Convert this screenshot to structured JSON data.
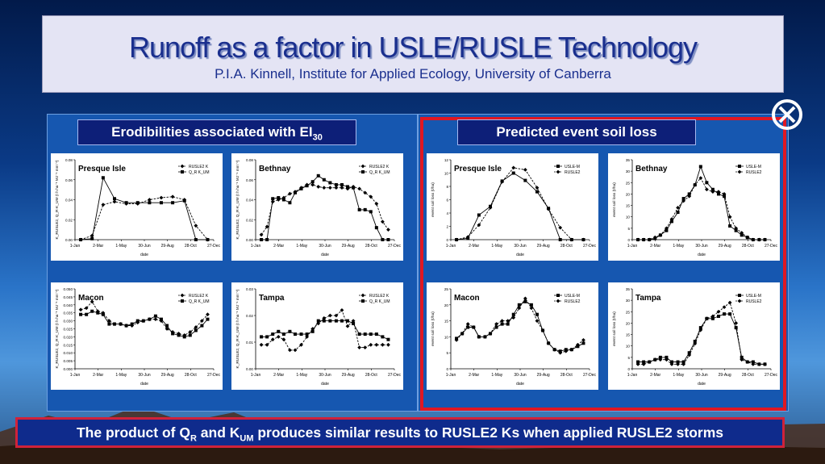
{
  "slide": {
    "title": "Runoff as a factor in USLE/RUSLE Technology",
    "subtitle": "P.I.A. Kinnell, Institute for Applied Ecology, University of Canberra",
    "left_header_main": "Erodibilities associated with EI",
    "left_header_sub": "30",
    "right_header": "Predicted event soil loss",
    "footer_part1": "The product of Q",
    "footer_sub1": "R",
    "footer_part2": " and K",
    "footer_sub2": "UM",
    "footer_part3": " produces similar results to RUSLE2 Ks when applied RUSLE2 storms",
    "close_icon": "close-circle-icon",
    "colors": {
      "highlight_frame": "#e01822",
      "header_bg": "#0d1f78",
      "panel_bg": "#1657b0"
    }
  },
  "chart_data": [
    {
      "id": "k-presque",
      "type": "line",
      "title": "Presque Isle",
      "xlabel": "date",
      "ylabel": "K_RUSLE2, Q_R·K_UM (t h ha⁻¹ MJ⁻¹ mm⁻¹)",
      "x_ticks": [
        "1-Jan",
        "2-Mar",
        "1-May",
        "30-Jun",
        "29-Aug",
        "28-Oct",
        "27-Dec"
      ],
      "y_ticks": [
        "0.00",
        "0.02",
        "0.04",
        "0.06",
        "0.08"
      ],
      "ylim": [
        0,
        0.08
      ],
      "legend": [
        "RUSLE2 K",
        "Q_R K_UM"
      ],
      "series": [
        {
          "name": "RUSLE2 K",
          "dashed": true,
          "marker": "diamond",
          "x": [
            15,
            45,
            74,
            104,
            135,
            165,
            196,
            227,
            257,
            288,
            318,
            349
          ],
          "y": [
            0,
            0.004,
            0.035,
            0.038,
            0.036,
            0.036,
            0.04,
            0.042,
            0.043,
            0.04,
            0.014,
            0
          ]
        },
        {
          "name": "Q_R K_UM",
          "dashed": false,
          "marker": "square",
          "x": [
            15,
            45,
            74,
            104,
            135,
            165,
            196,
            227,
            257,
            288,
            318,
            349
          ],
          "y": [
            0,
            0.001,
            0.062,
            0.041,
            0.037,
            0.037,
            0.037,
            0.037,
            0.037,
            0.039,
            0,
            0
          ]
        }
      ]
    },
    {
      "id": "k-bethnay",
      "type": "line",
      "title": "Bethnay",
      "xlabel": "date",
      "ylabel": "K_RUSLE2, Q_R·K_UM (t h ha⁻¹ MJ⁻¹ mm⁻¹)",
      "x_ticks": [
        "1-Jan",
        "2-Mar",
        "1-May",
        "30-Jun",
        "29-Aug",
        "28-Oct",
        "27-Dec"
      ],
      "y_ticks": [
        "0.00",
        "0.02",
        "0.04",
        "0.06",
        "0.08"
      ],
      "ylim": [
        0,
        0.08
      ],
      "legend": [
        "RUSLE2 K",
        "Q_R K_UM"
      ],
      "series": [
        {
          "name": "RUSLE2 K",
          "dashed": true,
          "marker": "diamond",
          "x": [
            15,
            30,
            45,
            60,
            74,
            90,
            104,
            120,
            135,
            150,
            165,
            180,
            196,
            212,
            227,
            242,
            257,
            273,
            288,
            303,
            318,
            334,
            349
          ],
          "y": [
            0.005,
            0.013,
            0.038,
            0.04,
            0.042,
            0.046,
            0.048,
            0.052,
            0.055,
            0.055,
            0.053,
            0.052,
            0.052,
            0.052,
            0.052,
            0.051,
            0.053,
            0.051,
            0.047,
            0.043,
            0.036,
            0.018,
            0.01
          ]
        },
        {
          "name": "Q_R K_UM",
          "dashed": false,
          "marker": "square",
          "x": [
            15,
            30,
            45,
            60,
            74,
            90,
            104,
            120,
            135,
            150,
            165,
            180,
            196,
            212,
            227,
            242,
            257,
            273,
            288,
            303,
            318,
            334,
            349
          ],
          "y": [
            0,
            0,
            0.041,
            0.042,
            0.04,
            0.037,
            0.047,
            0.051,
            0.054,
            0.058,
            0.064,
            0.06,
            0.057,
            0.055,
            0.055,
            0.053,
            0.052,
            0.03,
            0.03,
            0.028,
            0.012,
            0,
            0
          ]
        }
      ]
    },
    {
      "id": "k-macon",
      "type": "line",
      "title": "Macon",
      "xlabel": "date",
      "ylabel": "K_RUSLE2, Q_R·K_UM (t h ha⁻¹ MJ⁻¹ mm⁻¹)",
      "x_ticks": [
        "1-Jan",
        "2-Mar",
        "1-May",
        "30-Jun",
        "29-Aug",
        "28-Oct",
        "27-Dec"
      ],
      "y_ticks": [
        "0.000",
        "0.005",
        "0.010",
        "0.015",
        "0.020",
        "0.025",
        "0.030",
        "0.035",
        "0.040",
        "0.045",
        "0.050"
      ],
      "ylim": [
        0,
        0.05
      ],
      "legend": [
        "RUSLE2 K",
        "Q_R K_UM"
      ],
      "series": [
        {
          "name": "RUSLE2 K",
          "dashed": true,
          "marker": "diamond",
          "x": [
            15,
            30,
            45,
            60,
            74,
            90,
            104,
            120,
            135,
            150,
            165,
            180,
            196,
            212,
            227,
            242,
            257,
            273,
            288,
            303,
            318,
            334,
            349
          ],
          "y": [
            0.037,
            0.038,
            0.042,
            0.036,
            0.035,
            0.03,
            0.028,
            0.028,
            0.027,
            0.027,
            0.029,
            0.03,
            0.031,
            0.031,
            0.03,
            0.025,
            0.023,
            0.022,
            0.021,
            0.023,
            0.026,
            0.03,
            0.034
          ]
        },
        {
          "name": "Q_R K_UM",
          "dashed": false,
          "marker": "square",
          "x": [
            15,
            30,
            45,
            60,
            74,
            90,
            104,
            120,
            135,
            150,
            165,
            180,
            196,
            212,
            227,
            242,
            257,
            273,
            288,
            303,
            318,
            334,
            349
          ],
          "y": [
            0.034,
            0.034,
            0.036,
            0.035,
            0.034,
            0.028,
            0.028,
            0.028,
            0.027,
            0.028,
            0.03,
            0.03,
            0.031,
            0.033,
            0.031,
            0.027,
            0.022,
            0.021,
            0.02,
            0.021,
            0.024,
            0.027,
            0.031
          ]
        }
      ]
    },
    {
      "id": "k-tampa",
      "type": "line",
      "title": "Tampa",
      "xlabel": "date",
      "ylabel": "K_RUSLE2, Q_R·K_UM (t h ha⁻¹ MJ⁻¹ mm⁻¹)",
      "x_ticks": [
        "1-Jan",
        "2-Mar",
        "1-May",
        "30-Jun",
        "29-Aug",
        "28-Oct",
        "27-Dec"
      ],
      "y_ticks": [
        "0.00",
        "0.01",
        "0.02",
        "0.03"
      ],
      "ylim": [
        0,
        0.03
      ],
      "legend": [
        "RUSLE2 K",
        "Q_R K_UM"
      ],
      "series": [
        {
          "name": "RUSLE2 K",
          "dashed": true,
          "marker": "diamond",
          "x": [
            15,
            30,
            45,
            60,
            74,
            90,
            104,
            120,
            135,
            150,
            165,
            180,
            196,
            212,
            227,
            242,
            257,
            273,
            288,
            303,
            318,
            334,
            349
          ],
          "y": [
            0.009,
            0.009,
            0.011,
            0.012,
            0.011,
            0.007,
            0.007,
            0.009,
            0.012,
            0.015,
            0.017,
            0.019,
            0.02,
            0.02,
            0.022,
            0.016,
            0.018,
            0.008,
            0.008,
            0.009,
            0.009,
            0.009,
            0.009
          ]
        },
        {
          "name": "Q_R K_UM",
          "dashed": false,
          "marker": "square",
          "x": [
            15,
            30,
            45,
            60,
            74,
            90,
            104,
            120,
            135,
            150,
            165,
            180,
            196,
            212,
            227,
            242,
            257,
            273,
            288,
            303,
            318,
            334,
            349
          ],
          "y": [
            0.012,
            0.012,
            0.013,
            0.014,
            0.013,
            0.014,
            0.013,
            0.013,
            0.013,
            0.014,
            0.018,
            0.018,
            0.018,
            0.018,
            0.018,
            0.018,
            0.017,
            0.013,
            0.013,
            0.013,
            0.013,
            0.012,
            0.011
          ]
        }
      ]
    },
    {
      "id": "sl-presque",
      "type": "line",
      "title": "Presque Isle",
      "xlabel": "date",
      "ylabel": "event soil loss (t/ha)",
      "x_ticks": [
        "1-Jan",
        "2-Mar",
        "1-May",
        "30-Jun",
        "29-Aug",
        "28-Oct",
        "27-Dec"
      ],
      "y_ticks": [
        "0",
        "2",
        "4",
        "6",
        "8",
        "10",
        "12"
      ],
      "ylim": [
        0,
        12
      ],
      "legend": [
        "USLE-M",
        "RUSLE2"
      ],
      "series": [
        {
          "name": "USLE-M",
          "dashed": false,
          "marker": "square",
          "x": [
            15,
            45,
            74,
            104,
            135,
            165,
            196,
            227,
            257,
            288,
            318,
            349
          ],
          "y": [
            0,
            0.2,
            3.7,
            5.0,
            8.8,
            10.0,
            8.9,
            7.2,
            4.7,
            0,
            0,
            0
          ]
        },
        {
          "name": "RUSLE2",
          "dashed": true,
          "marker": "diamond",
          "x": [
            15,
            45,
            74,
            104,
            135,
            165,
            196,
            227,
            257,
            288,
            318,
            349
          ],
          "y": [
            0,
            0.4,
            2.2,
            4.8,
            8.7,
            10.8,
            10.5,
            7.8,
            4.6,
            1.8,
            0,
            0
          ]
        }
      ]
    },
    {
      "id": "sl-bethnay",
      "type": "line",
      "title": "Bethnay",
      "xlabel": "date",
      "ylabel": "event soil loss (t/ha)",
      "x_ticks": [
        "1-Jan",
        "2-Mar",
        "1-May",
        "30-Jun",
        "29-Aug",
        "28-Oct",
        "27-Dec"
      ],
      "y_ticks": [
        "0",
        "5",
        "10",
        "15",
        "20",
        "25",
        "30",
        "35"
      ],
      "ylim": [
        0,
        35
      ],
      "legend": [
        "USLE-M",
        "RUSLE2"
      ],
      "series": [
        {
          "name": "USLE-M",
          "dashed": false,
          "marker": "square",
          "x": [
            15,
            30,
            45,
            60,
            74,
            90,
            104,
            120,
            135,
            150,
            165,
            180,
            196,
            212,
            227,
            242,
            257,
            273,
            288,
            303,
            318,
            334,
            349
          ],
          "y": [
            0,
            0,
            0,
            0.5,
            2,
            4,
            8,
            12,
            18,
            20,
            24,
            32,
            25,
            22,
            20,
            19,
            6,
            4,
            2,
            1,
            0,
            0,
            0
          ]
        },
        {
          "name": "RUSLE2",
          "dashed": true,
          "marker": "diamond",
          "x": [
            15,
            30,
            45,
            60,
            74,
            90,
            104,
            120,
            135,
            150,
            165,
            180,
            196,
            212,
            227,
            242,
            257,
            273,
            288,
            303,
            318,
            334,
            349
          ],
          "y": [
            0,
            0,
            0,
            1,
            2,
            5,
            9,
            14,
            17,
            19,
            24,
            27,
            22,
            21,
            21,
            20,
            10,
            5,
            3,
            1,
            0,
            0,
            0
          ]
        }
      ]
    },
    {
      "id": "sl-macon",
      "type": "line",
      "title": "Macon",
      "xlabel": "date",
      "ylabel": "event soil loss (t/ha)",
      "x_ticks": [
        "1-Jan",
        "2-Mar",
        "1-May",
        "30-Jun",
        "29-Aug",
        "28-Oct",
        "27-Dec"
      ],
      "y_ticks": [
        "0",
        "5",
        "10",
        "15",
        "20",
        "25"
      ],
      "ylim": [
        0,
        25
      ],
      "legend": [
        "USLE-M",
        "RUSLE2"
      ],
      "series": [
        {
          "name": "USLE-M",
          "dashed": false,
          "marker": "square",
          "x": [
            15,
            30,
            45,
            60,
            74,
            90,
            104,
            120,
            135,
            150,
            165,
            180,
            196,
            212,
            227,
            242,
            257,
            273,
            288,
            303,
            318,
            334,
            349
          ],
          "y": [
            9.5,
            11,
            13,
            13,
            10,
            10,
            11,
            13,
            14,
            14,
            17,
            20,
            21,
            20,
            17,
            12,
            8,
            6,
            5.5,
            6,
            6,
            7,
            8
          ]
        },
        {
          "name": "RUSLE2",
          "dashed": true,
          "marker": "diamond",
          "x": [
            15,
            30,
            45,
            60,
            74,
            90,
            104,
            120,
            135,
            150,
            165,
            180,
            196,
            212,
            227,
            242,
            257,
            273,
            288,
            303,
            318,
            334,
            349
          ],
          "y": [
            9,
            11,
            14,
            13,
            10,
            10,
            11,
            14,
            15,
            15,
            16,
            19,
            22,
            19,
            15,
            12,
            8,
            6,
            5,
            5.5,
            6,
            7.5,
            9
          ]
        }
      ]
    },
    {
      "id": "sl-tampa",
      "type": "line",
      "title": "Tampa",
      "xlabel": "date",
      "ylabel": "event soil loss (t/ha)",
      "x_ticks": [
        "1-Jan",
        "2-Mar",
        "1-May",
        "30-Jun",
        "29-Aug",
        "28-Oct",
        "27-Dec"
      ],
      "y_ticks": [
        "0",
        "5",
        "10",
        "15",
        "20",
        "25",
        "30",
        "35"
      ],
      "ylim": [
        0,
        35
      ],
      "legend": [
        "USLE-M",
        "RUSLE2"
      ],
      "series": [
        {
          "name": "USLE-M",
          "dashed": false,
          "marker": "square",
          "x": [
            15,
            30,
            45,
            60,
            74,
            90,
            104,
            120,
            135,
            150,
            165,
            180,
            196,
            212,
            227,
            242,
            257,
            273,
            288,
            303,
            318,
            334,
            349
          ],
          "y": [
            3,
            3,
            3,
            4,
            5,
            5,
            3,
            3,
            3,
            7,
            12,
            18,
            22,
            22,
            23,
            24,
            24,
            18,
            5,
            3,
            3,
            2,
            2
          ]
        },
        {
          "name": "RUSLE2",
          "dashed": true,
          "marker": "diamond",
          "x": [
            15,
            30,
            45,
            60,
            74,
            90,
            104,
            120,
            135,
            150,
            165,
            180,
            196,
            212,
            227,
            242,
            257,
            273,
            288,
            303,
            318,
            334,
            349
          ],
          "y": [
            2,
            2,
            3,
            4,
            4,
            4,
            2,
            2,
            2,
            6,
            11,
            17,
            22,
            23,
            25,
            27,
            29,
            20,
            4,
            3,
            2,
            2,
            2
          ]
        }
      ]
    }
  ]
}
